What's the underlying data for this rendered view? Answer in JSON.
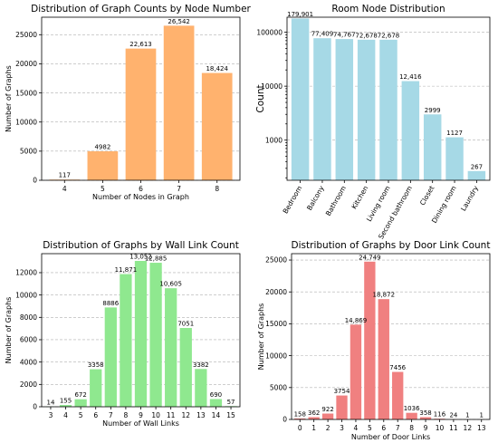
{
  "chart_data": [
    {
      "type": "bar",
      "title": "Distribution of Graph Counts by Node Number",
      "xlabel": "Number of Nodes in Graph",
      "ylabel": "Number of Graphs",
      "categories": [
        "4",
        "5",
        "6",
        "7",
        "8"
      ],
      "values": [
        117,
        4982,
        22613,
        26542,
        18424
      ],
      "value_labels": [
        "117",
        "4982",
        "22,613",
        "26,542",
        "18,424"
      ],
      "ylim": [
        0,
        28000
      ],
      "yticks": [
        0,
        5000,
        10000,
        15000,
        20000,
        25000
      ],
      "ytick_labels": [
        "0",
        "5000",
        "10000",
        "15000",
        "20000",
        "25000"
      ],
      "yscale": "linear",
      "grid": "y",
      "color": "#ffb26e"
    },
    {
      "type": "bar",
      "title": "Room Node Distribution",
      "xlabel": "",
      "ylabel": "Count",
      "categories": [
        "Bedroom",
        "Balcony",
        "Bathroom",
        "Kitchen",
        "Living room",
        "Second bathroom",
        "Closet",
        "Dining room",
        "Laundry"
      ],
      "values": [
        179901,
        77409,
        74767,
        72678,
        72678,
        12416,
        2999,
        1127,
        267
      ],
      "value_labels": [
        "179,901",
        "77,409",
        "74,767",
        "72,678",
        "72,678",
        "12,416",
        "2999",
        "1127",
        "267"
      ],
      "ylim": [
        180,
        190000
      ],
      "yticks": [
        1000,
        10000,
        100000
      ],
      "ytick_labels": [
        "1000",
        "10000",
        "100000"
      ],
      "yscale": "log",
      "grid": "y",
      "xtick_rotation": 60,
      "color": "#a6d9e6"
    },
    {
      "type": "bar",
      "title": "Distribution of Graphs by Wall Link Count",
      "xlabel": "Number of Wall Links",
      "ylabel": "Number of Graphs",
      "categories": [
        "3",
        "4",
        "5",
        "6",
        "7",
        "8",
        "9",
        "10",
        "11",
        "12",
        "13",
        "14",
        "15"
      ],
      "values": [
        14,
        155,
        672,
        3358,
        8886,
        11871,
        13052,
        12885,
        10605,
        7051,
        3382,
        690,
        57
      ],
      "value_labels": [
        "14",
        "155",
        "672",
        "3358",
        "8886",
        "11,871",
        "13,052",
        "12,885",
        "10,605",
        "7051",
        "3382",
        "690",
        "57"
      ],
      "ylim": [
        0,
        13700
      ],
      "yticks": [
        0,
        2000,
        4000,
        6000,
        8000,
        10000,
        12000
      ],
      "ytick_labels": [
        "0",
        "2000",
        "4000",
        "6000",
        "8000",
        "10000",
        "12000"
      ],
      "yscale": "linear",
      "grid": "y",
      "color": "#8fe88f"
    },
    {
      "type": "bar",
      "title": "Distribution of Graphs by Door Link Count",
      "xlabel": "Number of Door Links",
      "ylabel": "Number of Graphs",
      "categories": [
        "0",
        "1",
        "2",
        "3",
        "4",
        "5",
        "6",
        "7",
        "8",
        "9",
        "10",
        "11",
        "12",
        "13"
      ],
      "values": [
        158,
        362,
        922,
        3754,
        14869,
        24749,
        18872,
        7456,
        1036,
        358,
        116,
        24,
        1,
        1
      ],
      "value_labels": [
        "158",
        "362",
        "922",
        "3754",
        "14,869",
        "24,749",
        "18,872",
        "7456",
        "1036",
        "358",
        "116",
        "24",
        "1",
        "1"
      ],
      "ylim": [
        0,
        26000
      ],
      "yticks": [
        0,
        5000,
        10000,
        15000,
        20000,
        25000
      ],
      "ytick_labels": [
        "0",
        "5000",
        "10000",
        "15000",
        "20000",
        "25000"
      ],
      "yscale": "linear",
      "grid": "y",
      "color": "#f08080"
    }
  ]
}
